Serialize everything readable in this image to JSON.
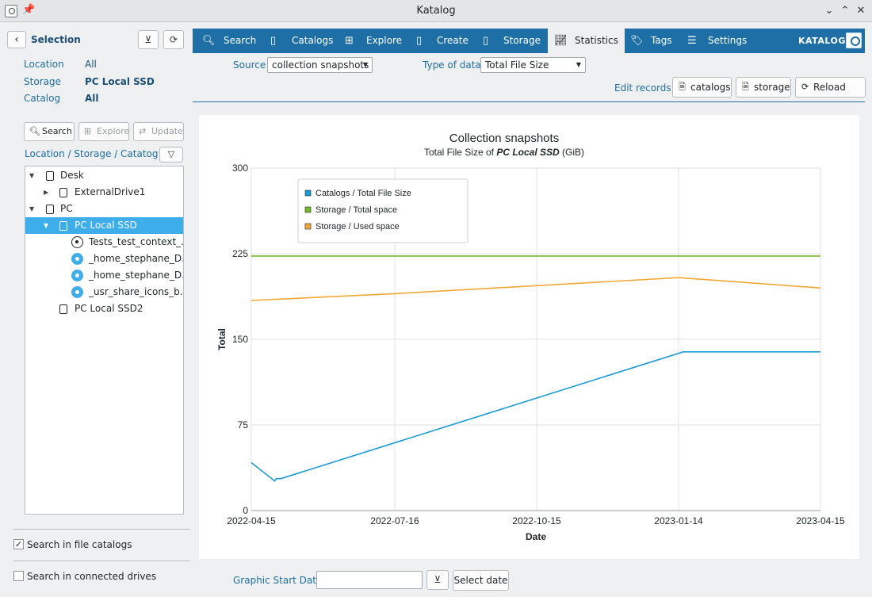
{
  "window": {
    "title": "Katalog"
  },
  "selection": {
    "title": "Selection",
    "fields": [
      {
        "label": "Location",
        "value": "All"
      },
      {
        "label": "Storage",
        "value": "PC Local SSD"
      },
      {
        "label": "Catalog",
        "value": "All"
      }
    ]
  },
  "left_buttons": {
    "search": "Search",
    "explore": "Explore",
    "update": "Update"
  },
  "tree": {
    "header": "Location / Storage / Catatog",
    "items": [
      {
        "label": "Desk"
      },
      {
        "label": "ExternalDrive1"
      },
      {
        "label": "PC"
      },
      {
        "label": "PC Local SSD"
      },
      {
        "label": "Tests_test_context_..."
      },
      {
        "label": "_home_stephane_D..."
      },
      {
        "label": "_home_stephane_D..."
      },
      {
        "label": "_usr_share_icons_b..."
      },
      {
        "label": "PC Local SSD2"
      }
    ]
  },
  "options": {
    "search_catalogs": "Search in file catalogs",
    "search_catalogs_checked": true,
    "search_drives": "Search in connected drives",
    "search_drives_checked": false
  },
  "tabs": [
    "Search",
    "Catalogs",
    "Explore",
    "Create",
    "Storage",
    "Statistics",
    "Tags",
    "Settings"
  ],
  "active_tab": "Statistics",
  "brand": "KATALOG",
  "stats": {
    "source_label": "Source",
    "source_value": "collection snapshots",
    "type_label": "Type of data",
    "type_value": "Total File Size",
    "edit_label": "Edit records:",
    "btn_catalogs": "catalogs",
    "btn_storage": "storage",
    "btn_reload": "Reload",
    "start_date_label": "Graphic Start Date",
    "start_date_value": "",
    "select_date": "Select date"
  },
  "chart_data": {
    "type": "line",
    "title": "Collection snapshots",
    "subtitle_prefix": "Total File Size of ",
    "subtitle_name": "PC Local SSD",
    "subtitle_suffix": " (GiB)",
    "xlabel": "Date",
    "ylabel": "Total",
    "xlim": [
      "2022-04-15",
      "2023-04-15"
    ],
    "ylim": [
      0,
      300
    ],
    "x_ticks": [
      "2022-04-15",
      "2022-07-16",
      "2022-10-15",
      "2023-01-14",
      "2023-04-15"
    ],
    "y_ticks": [
      0,
      75,
      150,
      225,
      300
    ],
    "grid": true,
    "legend_position": "top-left",
    "series": [
      {
        "name": "Catalogs / Total File Size",
        "color": "#1c9ad6",
        "points": [
          [
            "2022-04-15",
            42
          ],
          [
            "2022-04-30",
            26
          ],
          [
            "2022-05-01",
            28
          ],
          [
            "2022-05-04",
            28
          ],
          [
            "2023-01-17",
            139
          ],
          [
            "2023-04-15",
            139
          ]
        ]
      },
      {
        "name": "Storage / Total space",
        "color": "#76b82a",
        "points": [
          [
            "2022-04-15",
            223
          ],
          [
            "2023-04-15",
            223
          ]
        ]
      },
      {
        "name": "Storage / Used space",
        "color": "#f3a736",
        "points": [
          [
            "2022-04-15",
            184
          ],
          [
            "2022-07-16",
            190
          ],
          [
            "2022-10-15",
            197
          ],
          [
            "2023-01-14",
            204
          ],
          [
            "2023-04-15",
            195
          ]
        ]
      }
    ]
  }
}
